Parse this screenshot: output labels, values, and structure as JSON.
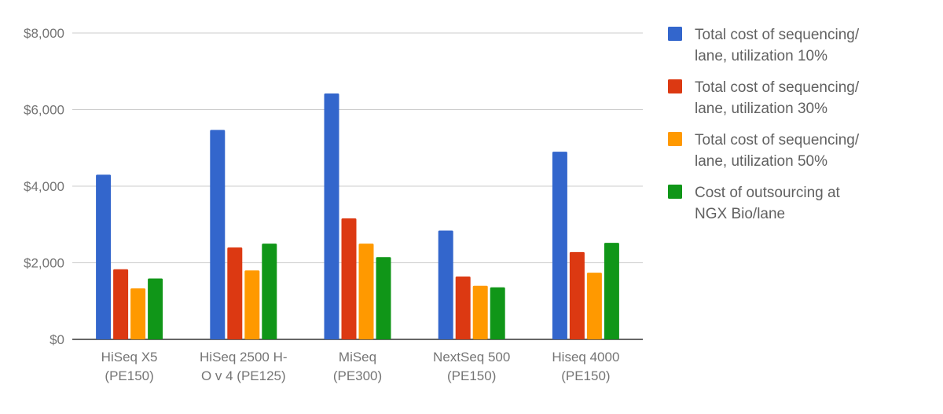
{
  "chart_data": {
    "type": "bar",
    "categories": [
      [
        "HiSeq X5",
        "(PE150)"
      ],
      [
        "HiSeq 2500 H-",
        "O v 4 (PE125)"
      ],
      [
        "MiSeq",
        "(PE300)"
      ],
      [
        "NextSeq 500",
        "(PE150)"
      ],
      [
        "Hiseq 4000",
        "(PE150)"
      ]
    ],
    "series": [
      {
        "name": [
          "Total cost of sequencing/",
          "lane, utilization 10%"
        ],
        "color": "#3366cc",
        "values": [
          4300,
          5470,
          6420,
          2840,
          4900
        ]
      },
      {
        "name": [
          "Total cost of sequencing/",
          "lane, utilization 30%"
        ],
        "color": "#dc3912",
        "values": [
          1830,
          2400,
          3160,
          1640,
          2280
        ]
      },
      {
        "name": [
          "Total cost of sequencing/",
          "lane, utilization 50%"
        ],
        "color": "#ff9900",
        "values": [
          1330,
          1800,
          2500,
          1400,
          1740
        ]
      },
      {
        "name": [
          "Cost of outsourcing at",
          "NGX Bio/lane"
        ],
        "color": "#109618",
        "values": [
          1590,
          2500,
          2150,
          1360,
          2520
        ]
      }
    ],
    "yticks": [
      "$0",
      "$2,000",
      "$4,000",
      "$6,000",
      "$8,000"
    ],
    "ytick_values": [
      0,
      2000,
      4000,
      6000,
      8000
    ],
    "ylim": [
      0,
      8000
    ],
    "grid": true,
    "legend_position": "right"
  }
}
